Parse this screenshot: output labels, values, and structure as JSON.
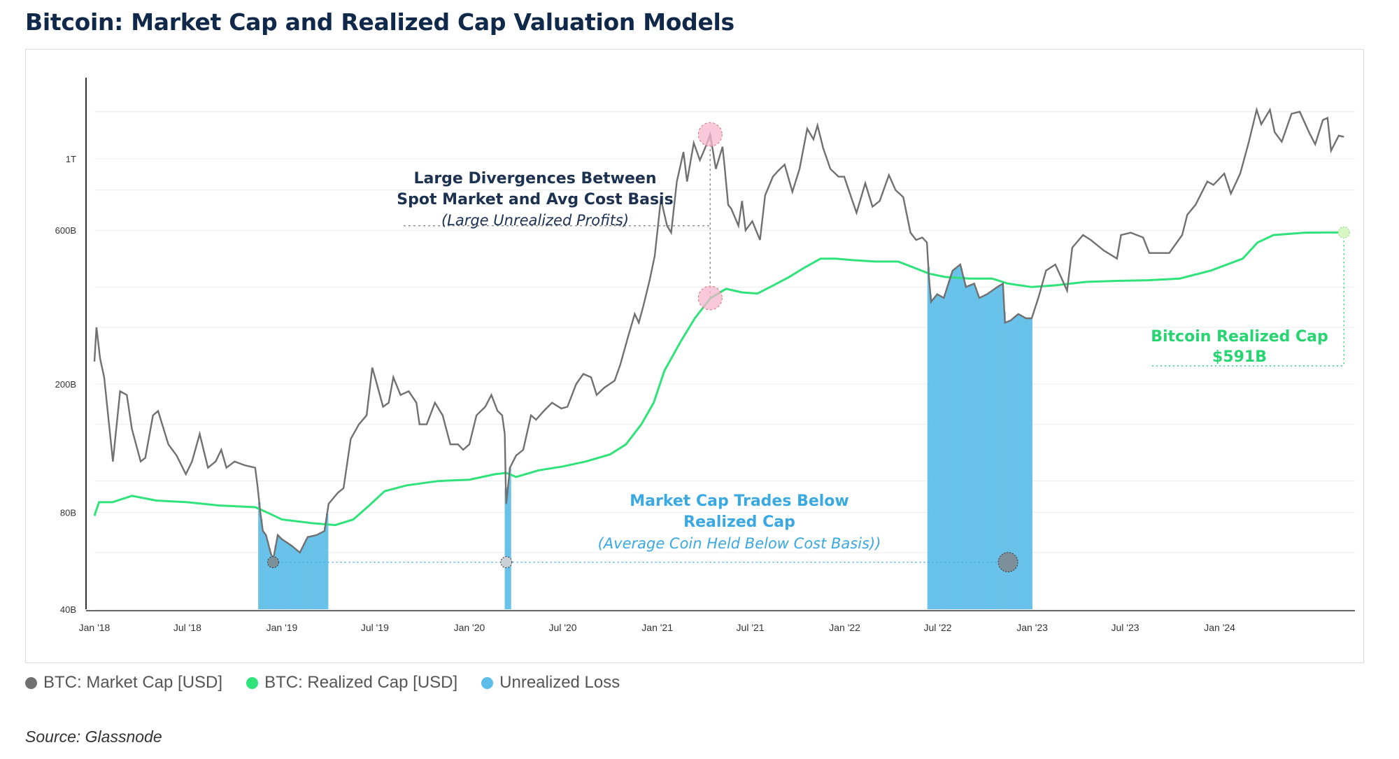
{
  "title": "Bitcoin: Market Cap and Realized Cap Valuation Models",
  "source": "Source: Glassnode",
  "colors": {
    "market_cap": "#707070",
    "realized_cap": "#2fe27a",
    "unrealized_loss": "#5bbde8",
    "title": "#10294a",
    "annotation_dark": "#1d3150",
    "annotation_blue": "#3aa9e2",
    "annotation_green": "#27d472",
    "peak_marker": "#f7b6cd",
    "low_marker": "#7d8f99"
  },
  "legend": [
    {
      "label": "BTC: Market Cap [USD]",
      "color": "#707070"
    },
    {
      "label": "BTC: Realized Cap [USD]",
      "color": "#2fe27a"
    },
    {
      "label": "Unrealized Loss",
      "color": "#5bbde8"
    }
  ],
  "annotations": {
    "divergence": {
      "line1": "Large Divergences Between",
      "line2": "Spot Market and Avg Cost Basis",
      "line3": "(Large Unrealized Profits)"
    },
    "below": {
      "line1": "Market Cap Trades Below",
      "line2": "Realized Cap",
      "line3": "(Average Coin Held Below Cost Basis))"
    },
    "realized": {
      "line1": "Bitcoin Realized Cap",
      "line2": "$591B"
    }
  },
  "chart_data": {
    "type": "line",
    "y_scale": "log",
    "ylim": [
      40,
      1600
    ],
    "xlim": [
      "2018-01-01",
      "2024-08-31"
    ],
    "y_ticks": [
      {
        "value": 40,
        "label": "40B"
      },
      {
        "value": 80,
        "label": "80B"
      },
      {
        "value": 200,
        "label": "200B"
      },
      {
        "value": 600,
        "label": "600B"
      },
      {
        "value": 1000,
        "label": "1T"
      }
    ],
    "x_ticks": [
      {
        "date": "2018-01-01",
        "label": "Jan '18"
      },
      {
        "date": "2018-07-01",
        "label": "Jul '18"
      },
      {
        "date": "2019-01-01",
        "label": "Jan '19"
      },
      {
        "date": "2019-07-01",
        "label": "Jul '19"
      },
      {
        "date": "2020-01-01",
        "label": "Jan '20"
      },
      {
        "date": "2020-07-01",
        "label": "Jul '20"
      },
      {
        "date": "2021-01-01",
        "label": "Jan '21"
      },
      {
        "date": "2021-07-01",
        "label": "Jul '21"
      },
      {
        "date": "2022-01-01",
        "label": "Jan '22"
      },
      {
        "date": "2022-07-01",
        "label": "Jul '22"
      },
      {
        "date": "2023-01-01",
        "label": "Jan '23"
      },
      {
        "date": "2023-07-01",
        "label": "Jul '23"
      },
      {
        "date": "2024-01-01",
        "label": "Jan '24"
      }
    ],
    "series": [
      {
        "name": "BTC: Market Cap [USD]",
        "points": [
          [
            "2018-01-01",
            235
          ],
          [
            "2018-01-05",
            300
          ],
          [
            "2018-01-12",
            240
          ],
          [
            "2018-01-20",
            210
          ],
          [
            "2018-02-06",
            115
          ],
          [
            "2018-02-20",
            190
          ],
          [
            "2018-03-05",
            185
          ],
          [
            "2018-03-15",
            145
          ],
          [
            "2018-04-01",
            115
          ],
          [
            "2018-04-10",
            118
          ],
          [
            "2018-04-25",
            160
          ],
          [
            "2018-05-05",
            165
          ],
          [
            "2018-05-25",
            130
          ],
          [
            "2018-06-10",
            120
          ],
          [
            "2018-06-28",
            105
          ],
          [
            "2018-07-10",
            115
          ],
          [
            "2018-07-25",
            140
          ],
          [
            "2018-08-10",
            110
          ],
          [
            "2018-08-25",
            115
          ],
          [
            "2018-09-05",
            125
          ],
          [
            "2018-09-15",
            110
          ],
          [
            "2018-10-01",
            115
          ],
          [
            "2018-10-20",
            112
          ],
          [
            "2018-11-10",
            110
          ],
          [
            "2018-11-15",
            95
          ],
          [
            "2018-11-20",
            80
          ],
          [
            "2018-11-25",
            70
          ],
          [
            "2018-12-01",
            68
          ],
          [
            "2018-12-10",
            60
          ],
          [
            "2018-12-15",
            57
          ],
          [
            "2018-12-24",
            68
          ],
          [
            "2019-01-01",
            66
          ],
          [
            "2019-01-20",
            63
          ],
          [
            "2019-02-05",
            60
          ],
          [
            "2019-02-20",
            67
          ],
          [
            "2019-03-10",
            68
          ],
          [
            "2019-03-25",
            70
          ],
          [
            "2019-04-02",
            85
          ],
          [
            "2019-04-20",
            92
          ],
          [
            "2019-05-01",
            95
          ],
          [
            "2019-05-15",
            135
          ],
          [
            "2019-05-31",
            150
          ],
          [
            "2019-06-15",
            160
          ],
          [
            "2019-06-26",
            225
          ],
          [
            "2019-07-05",
            200
          ],
          [
            "2019-07-17",
            170
          ],
          [
            "2019-07-28",
            175
          ],
          [
            "2019-08-06",
            210
          ],
          [
            "2019-08-20",
            185
          ],
          [
            "2019-09-05",
            190
          ],
          [
            "2019-09-20",
            175
          ],
          [
            "2019-09-26",
            150
          ],
          [
            "2019-10-10",
            150
          ],
          [
            "2019-10-26",
            175
          ],
          [
            "2019-11-10",
            160
          ],
          [
            "2019-11-25",
            130
          ],
          [
            "2019-12-10",
            130
          ],
          [
            "2019-12-20",
            125
          ],
          [
            "2020-01-01",
            130
          ],
          [
            "2020-01-15",
            160
          ],
          [
            "2020-02-01",
            170
          ],
          [
            "2020-02-13",
            185
          ],
          [
            "2020-02-25",
            165
          ],
          [
            "2020-03-05",
            160
          ],
          [
            "2020-03-10",
            140
          ],
          [
            "2020-03-12",
            95
          ],
          [
            "2020-03-13",
            85
          ],
          [
            "2020-03-20",
            110
          ],
          [
            "2020-04-01",
            120
          ],
          [
            "2020-04-15",
            125
          ],
          [
            "2020-04-30",
            160
          ],
          [
            "2020-05-10",
            155
          ],
          [
            "2020-05-25",
            165
          ],
          [
            "2020-06-10",
            175
          ],
          [
            "2020-06-28",
            168
          ],
          [
            "2020-07-10",
            170
          ],
          [
            "2020-07-27",
            200
          ],
          [
            "2020-08-10",
            215
          ],
          [
            "2020-08-25",
            210
          ],
          [
            "2020-09-05",
            185
          ],
          [
            "2020-09-20",
            195
          ],
          [
            "2020-10-10",
            205
          ],
          [
            "2020-10-21",
            230
          ],
          [
            "2020-11-05",
            280
          ],
          [
            "2020-11-18",
            330
          ],
          [
            "2020-11-26",
            310
          ],
          [
            "2020-12-05",
            350
          ],
          [
            "2020-12-17",
            420
          ],
          [
            "2020-12-27",
            500
          ],
          [
            "2021-01-08",
            750
          ],
          [
            "2021-01-20",
            620
          ],
          [
            "2021-01-28",
            590
          ],
          [
            "2021-02-08",
            850
          ],
          [
            "2021-02-21",
            1050
          ],
          [
            "2021-02-28",
            850
          ],
          [
            "2021-03-13",
            1120
          ],
          [
            "2021-03-25",
            990
          ],
          [
            "2021-04-05",
            1090
          ],
          [
            "2021-04-14",
            1190
          ],
          [
            "2021-04-25",
            930
          ],
          [
            "2021-05-08",
            1090
          ],
          [
            "2021-05-12",
            950
          ],
          [
            "2021-05-19",
            720
          ],
          [
            "2021-05-25",
            700
          ],
          [
            "2021-06-08",
            620
          ],
          [
            "2021-06-15",
            740
          ],
          [
            "2021-06-22",
            600
          ],
          [
            "2021-07-05",
            640
          ],
          [
            "2021-07-20",
            560
          ],
          [
            "2021-07-30",
            770
          ],
          [
            "2021-08-14",
            880
          ],
          [
            "2021-08-25",
            920
          ],
          [
            "2021-09-06",
            960
          ],
          [
            "2021-09-21",
            790
          ],
          [
            "2021-10-05",
            930
          ],
          [
            "2021-10-20",
            1240
          ],
          [
            "2021-11-01",
            1150
          ],
          [
            "2021-11-09",
            1270
          ],
          [
            "2021-11-20",
            1080
          ],
          [
            "2021-12-04",
            930
          ],
          [
            "2021-12-20",
            880
          ],
          [
            "2021-12-31",
            880
          ],
          [
            "2022-01-10",
            790
          ],
          [
            "2022-01-24",
            680
          ],
          [
            "2022-02-10",
            840
          ],
          [
            "2022-02-24",
            710
          ],
          [
            "2022-03-10",
            740
          ],
          [
            "2022-03-28",
            890
          ],
          [
            "2022-04-10",
            800
          ],
          [
            "2022-04-25",
            760
          ],
          [
            "2022-05-09",
            590
          ],
          [
            "2022-05-20",
            560
          ],
          [
            "2022-06-01",
            570
          ],
          [
            "2022-06-10",
            550
          ],
          [
            "2022-06-14",
            430
          ],
          [
            "2022-06-18",
            360
          ],
          [
            "2022-06-30",
            380
          ],
          [
            "2022-07-13",
            370
          ],
          [
            "2022-07-30",
            450
          ],
          [
            "2022-08-14",
            470
          ],
          [
            "2022-08-25",
            400
          ],
          [
            "2022-09-10",
            410
          ],
          [
            "2022-09-20",
            370
          ],
          [
            "2022-10-05",
            380
          ],
          [
            "2022-10-25",
            400
          ],
          [
            "2022-11-05",
            410
          ],
          [
            "2022-11-09",
            310
          ],
          [
            "2022-11-20",
            315
          ],
          [
            "2022-12-05",
            330
          ],
          [
            "2022-12-20",
            320
          ],
          [
            "2022-12-31",
            320
          ],
          [
            "2023-01-13",
            370
          ],
          [
            "2023-01-28",
            450
          ],
          [
            "2023-02-15",
            470
          ],
          [
            "2023-03-10",
            390
          ],
          [
            "2023-03-20",
            530
          ],
          [
            "2023-04-10",
            580
          ],
          [
            "2023-04-25",
            560
          ],
          [
            "2023-05-20",
            520
          ],
          [
            "2023-06-15",
            490
          ],
          [
            "2023-06-23",
            580
          ],
          [
            "2023-07-12",
            590
          ],
          [
            "2023-08-05",
            570
          ],
          [
            "2023-08-17",
            510
          ],
          [
            "2023-09-10",
            510
          ],
          [
            "2023-09-25",
            510
          ],
          [
            "2023-10-20",
            580
          ],
          [
            "2023-10-30",
            670
          ],
          [
            "2023-11-15",
            720
          ],
          [
            "2023-12-08",
            850
          ],
          [
            "2023-12-20",
            830
          ],
          [
            "2024-01-10",
            900
          ],
          [
            "2024-01-23",
            780
          ],
          [
            "2024-02-10",
            900
          ],
          [
            "2024-02-27",
            1130
          ],
          [
            "2024-03-13",
            1420
          ],
          [
            "2024-03-22",
            1280
          ],
          [
            "2024-04-08",
            1420
          ],
          [
            "2024-04-17",
            1210
          ],
          [
            "2024-05-01",
            1130
          ],
          [
            "2024-05-20",
            1380
          ],
          [
            "2024-06-05",
            1400
          ],
          [
            "2024-06-24",
            1200
          ],
          [
            "2024-07-05",
            1110
          ],
          [
            "2024-07-20",
            1320
          ],
          [
            "2024-07-29",
            1340
          ],
          [
            "2024-08-05",
            1060
          ],
          [
            "2024-08-20",
            1180
          ],
          [
            "2024-08-30",
            1170
          ]
        ]
      },
      {
        "name": "BTC: Realized Cap [USD]",
        "points": [
          [
            "2018-01-01",
            78
          ],
          [
            "2018-01-10",
            86
          ],
          [
            "2018-02-05",
            86
          ],
          [
            "2018-03-15",
            90
          ],
          [
            "2018-05-01",
            87
          ],
          [
            "2018-07-01",
            86
          ],
          [
            "2018-09-01",
            84
          ],
          [
            "2018-11-10",
            83
          ],
          [
            "2018-12-10",
            79
          ],
          [
            "2019-01-01",
            76
          ],
          [
            "2019-03-01",
            74
          ],
          [
            "2019-04-15",
            73
          ],
          [
            "2019-05-20",
            76
          ],
          [
            "2019-06-20",
            84
          ],
          [
            "2019-07-20",
            93
          ],
          [
            "2019-09-01",
            97
          ],
          [
            "2019-11-01",
            100
          ],
          [
            "2020-01-01",
            101
          ],
          [
            "2020-02-20",
            105
          ],
          [
            "2020-03-13",
            106
          ],
          [
            "2020-04-01",
            103
          ],
          [
            "2020-05-15",
            108
          ],
          [
            "2020-07-01",
            111
          ],
          [
            "2020-08-15",
            115
          ],
          [
            "2020-10-01",
            121
          ],
          [
            "2020-11-01",
            130
          ],
          [
            "2020-12-01",
            150
          ],
          [
            "2020-12-25",
            175
          ],
          [
            "2021-01-15",
            220
          ],
          [
            "2021-02-15",
            270
          ],
          [
            "2021-03-15",
            320
          ],
          [
            "2021-04-15",
            370
          ],
          [
            "2021-05-15",
            395
          ],
          [
            "2021-06-15",
            385
          ],
          [
            "2021-07-15",
            382
          ],
          [
            "2021-08-15",
            405
          ],
          [
            "2021-09-15",
            430
          ],
          [
            "2021-10-15",
            460
          ],
          [
            "2021-11-15",
            490
          ],
          [
            "2021-12-15",
            490
          ],
          [
            "2022-01-15",
            485
          ],
          [
            "2022-03-01",
            480
          ],
          [
            "2022-04-15",
            480
          ],
          [
            "2022-05-15",
            460
          ],
          [
            "2022-06-15",
            440
          ],
          [
            "2022-07-15",
            430
          ],
          [
            "2022-09-01",
            425
          ],
          [
            "2022-10-15",
            425
          ],
          [
            "2022-11-15",
            410
          ],
          [
            "2022-12-31",
            400
          ],
          [
            "2023-02-15",
            405
          ],
          [
            "2023-04-15",
            415
          ],
          [
            "2023-06-15",
            418
          ],
          [
            "2023-08-15",
            420
          ],
          [
            "2023-10-15",
            425
          ],
          [
            "2023-12-15",
            450
          ],
          [
            "2024-02-15",
            490
          ],
          [
            "2024-03-15",
            550
          ],
          [
            "2024-04-15",
            580
          ],
          [
            "2024-06-15",
            590
          ],
          [
            "2024-08-30",
            591
          ]
        ]
      },
      {
        "name": "Unrealized Loss",
        "type": "area",
        "ranges": [
          [
            "2018-11-18",
            "2019-04-02"
          ],
          [
            "2020-03-12",
            "2020-03-20"
          ],
          [
            "2022-06-13",
            "2022-12-31"
          ]
        ]
      }
    ]
  }
}
